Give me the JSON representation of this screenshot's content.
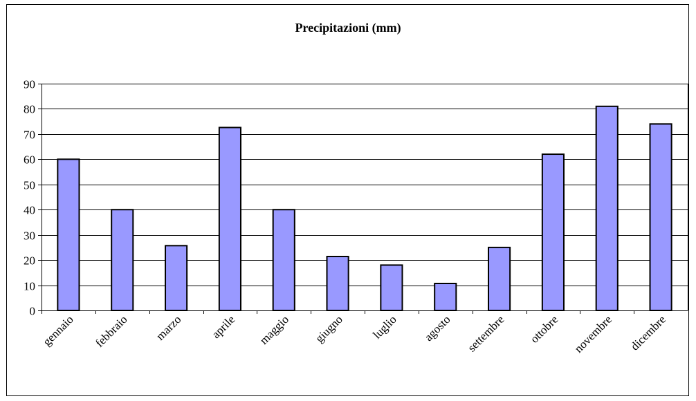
{
  "chart_data": {
    "type": "bar",
    "title": "Precipitazioni (mm)",
    "xlabel": "",
    "ylabel": "",
    "categories": [
      "gennaio",
      "febbraio",
      "marzo",
      "aprile",
      "maggio",
      "giugno",
      "luglio",
      "agosto",
      "settembre",
      "ottobre",
      "novembre",
      "dicembre"
    ],
    "values": [
      60,
      40,
      25.7,
      72.6,
      40,
      21.4,
      18,
      10.7,
      25,
      62,
      81,
      74
    ],
    "ylim": [
      0,
      90
    ],
    "yticks": [
      0,
      10,
      20,
      30,
      40,
      50,
      60,
      70,
      80,
      90
    ],
    "grid": true,
    "legend": "none",
    "colors": {
      "bar_fill": "#9999ff",
      "bar_stroke": "#000000",
      "grid": "#000000",
      "frame": "#000000"
    }
  }
}
